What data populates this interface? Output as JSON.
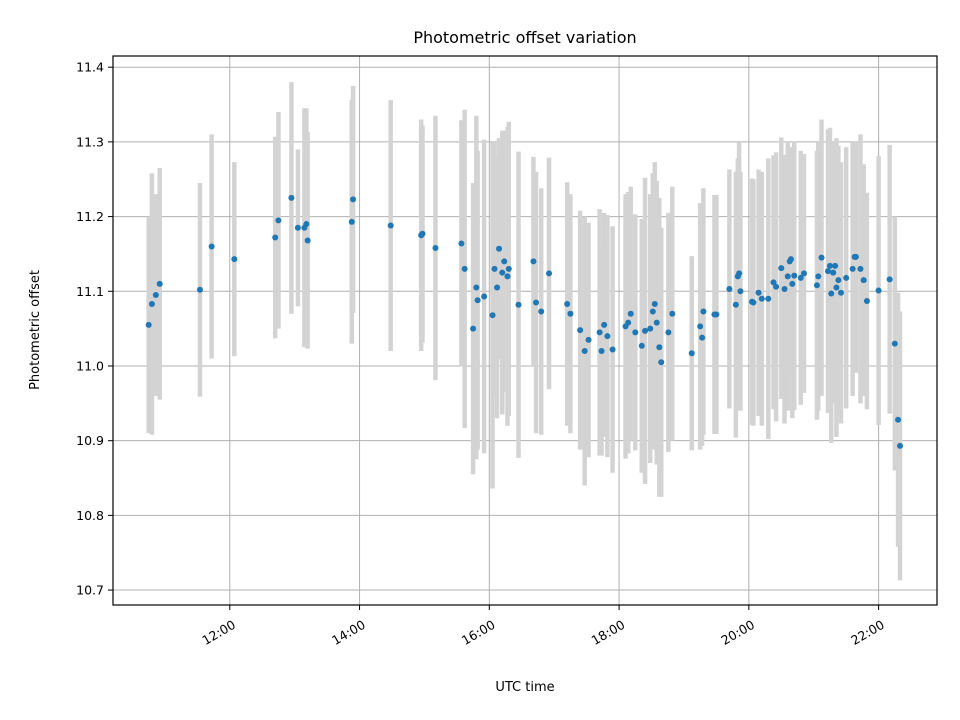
{
  "chart_data": {
    "type": "scatter",
    "title": "Photometric offset variation",
    "xlabel": "UTC time",
    "ylabel": "Photometric offset",
    "x_unit": "hours UTC",
    "xlim": [
      10.2,
      22.9
    ],
    "ylim": [
      10.68,
      11.415
    ],
    "xticks": [
      {
        "value": 12,
        "label": "12:00"
      },
      {
        "value": 14,
        "label": "14:00"
      },
      {
        "value": 16,
        "label": "16:00"
      },
      {
        "value": 18,
        "label": "18:00"
      },
      {
        "value": 20,
        "label": "20:00"
      },
      {
        "value": 22,
        "label": "22:00"
      }
    ],
    "yticks": [
      {
        "value": 10.7,
        "label": "10.7"
      },
      {
        "value": 10.8,
        "label": "10.8"
      },
      {
        "value": 10.9,
        "label": "10.9"
      },
      {
        "value": 11.0,
        "label": "11.0"
      },
      {
        "value": 11.1,
        "label": "11.1"
      },
      {
        "value": 11.2,
        "label": "11.2"
      },
      {
        "value": 11.3,
        "label": "11.3"
      },
      {
        "value": 11.4,
        "label": "11.4"
      }
    ],
    "grid": true,
    "legend": "none",
    "colors": {
      "points": "#1f77b4",
      "errorbars": "#d3d3d3",
      "grid": "#b0b0b0"
    },
    "series": [
      {
        "points": [
          [
            10.75,
            11.055,
            0.145
          ],
          [
            10.8,
            11.083,
            0.175
          ],
          [
            10.86,
            11.095,
            0.135
          ],
          [
            10.92,
            11.11,
            0.155
          ],
          [
            11.54,
            11.102,
            0.143
          ],
          [
            11.72,
            11.16,
            0.15
          ],
          [
            12.07,
            11.143,
            0.13
          ],
          [
            12.7,
            11.172,
            0.135
          ],
          [
            12.75,
            11.195,
            0.145
          ],
          [
            12.95,
            11.225,
            0.155
          ],
          [
            13.05,
            11.185,
            0.105
          ],
          [
            13.15,
            11.185,
            0.16
          ],
          [
            13.18,
            11.19,
            0.155
          ],
          [
            13.2,
            11.168,
            0.145
          ],
          [
            13.88,
            11.193,
            0.163
          ],
          [
            13.9,
            11.223,
            0.152
          ],
          [
            14.48,
            11.188,
            0.168
          ],
          [
            14.95,
            11.175,
            0.155
          ],
          [
            14.97,
            11.177,
            0.145
          ],
          [
            15.17,
            11.158,
            0.177
          ],
          [
            15.57,
            11.164,
            0.165
          ],
          [
            15.62,
            11.13,
            0.213
          ],
          [
            15.75,
            11.05,
            0.195
          ],
          [
            15.8,
            11.105,
            0.23
          ],
          [
            15.82,
            11.088,
            0.2
          ],
          [
            15.92,
            11.093,
            0.21
          ],
          [
            16.05,
            11.068,
            0.232
          ],
          [
            16.08,
            11.13,
            0.17
          ],
          [
            16.12,
            11.105,
            0.175
          ],
          [
            16.15,
            11.157,
            0.148
          ],
          [
            16.2,
            11.125,
            0.19
          ],
          [
            16.23,
            11.14,
            0.175
          ],
          [
            16.28,
            11.12,
            0.2
          ],
          [
            16.3,
            11.13,
            0.197
          ],
          [
            16.45,
            11.082,
            0.205
          ],
          [
            16.68,
            11.14,
            0.14
          ],
          [
            16.72,
            11.085,
            0.175
          ],
          [
            16.8,
            11.073,
            0.165
          ],
          [
            16.92,
            11.124,
            0.155
          ],
          [
            17.2,
            11.083,
            0.163
          ],
          [
            17.25,
            11.07,
            0.16
          ],
          [
            17.4,
            11.048,
            0.16
          ],
          [
            17.47,
            11.02,
            0.18
          ],
          [
            17.53,
            11.035,
            0.157
          ],
          [
            17.7,
            11.045,
            0.165
          ],
          [
            17.73,
            11.02,
            0.14
          ],
          [
            17.77,
            11.055,
            0.15
          ],
          [
            17.82,
            11.04,
            0.162
          ],
          [
            17.9,
            11.022,
            0.165
          ],
          [
            18.1,
            11.053,
            0.177
          ],
          [
            18.14,
            11.058,
            0.175
          ],
          [
            18.18,
            11.07,
            0.17
          ],
          [
            18.25,
            11.045,
            0.158
          ],
          [
            18.35,
            11.027,
            0.17
          ],
          [
            18.4,
            11.047,
            0.205
          ],
          [
            18.48,
            11.05,
            0.18
          ],
          [
            18.52,
            11.073,
            0.185
          ],
          [
            18.55,
            11.083,
            0.19
          ],
          [
            18.58,
            11.058,
            0.19
          ],
          [
            18.62,
            11.025,
            0.2
          ],
          [
            18.65,
            11.005,
            0.18
          ],
          [
            18.76,
            11.045,
            0.16
          ],
          [
            18.82,
            11.07,
            0.17
          ],
          [
            19.12,
            11.017,
            0.13
          ],
          [
            19.25,
            11.053,
            0.165
          ],
          [
            19.28,
            11.038,
            0.145
          ],
          [
            19.3,
            11.073,
            0.165
          ],
          [
            19.47,
            11.069,
            0.16
          ],
          [
            19.5,
            11.069,
            0.16
          ],
          [
            19.7,
            11.103,
            0.16
          ],
          [
            19.8,
            11.082,
            0.178
          ],
          [
            19.83,
            11.12,
            0.158
          ],
          [
            19.85,
            11.124,
            0.175
          ],
          [
            19.87,
            11.1,
            0.16
          ],
          [
            20.05,
            11.086,
            0.165
          ],
          [
            20.07,
            11.085,
            0.165
          ],
          [
            20.15,
            11.098,
            0.165
          ],
          [
            20.2,
            11.09,
            0.17
          ],
          [
            20.3,
            11.09,
            0.188
          ],
          [
            20.38,
            11.112,
            0.17
          ],
          [
            20.42,
            11.106,
            0.18
          ],
          [
            20.5,
            11.131,
            0.175
          ],
          [
            20.55,
            11.103,
            0.18
          ],
          [
            20.6,
            11.12,
            0.18
          ],
          [
            20.63,
            11.14,
            0.15
          ],
          [
            20.65,
            11.143,
            0.15
          ],
          [
            20.67,
            11.11,
            0.18
          ],
          [
            20.7,
            11.121,
            0.18
          ],
          [
            20.8,
            11.118,
            0.17
          ],
          [
            20.85,
            11.124,
            0.16
          ],
          [
            21.05,
            11.108,
            0.18
          ],
          [
            21.07,
            11.12,
            0.18
          ],
          [
            21.12,
            11.145,
            0.185
          ],
          [
            21.22,
            11.127,
            0.19
          ],
          [
            21.25,
            11.134,
            0.185
          ],
          [
            21.27,
            11.097,
            0.2
          ],
          [
            21.3,
            11.125,
            0.175
          ],
          [
            21.33,
            11.134,
            0.15
          ],
          [
            21.35,
            11.105,
            0.2
          ],
          [
            21.38,
            11.115,
            0.18
          ],
          [
            21.42,
            11.098,
            0.175
          ],
          [
            21.5,
            11.118,
            0.175
          ],
          [
            21.6,
            11.13,
            0.17
          ],
          [
            21.63,
            11.146,
            0.15
          ],
          [
            21.65,
            11.146,
            0.155
          ],
          [
            21.72,
            11.13,
            0.18
          ],
          [
            21.77,
            11.115,
            0.155
          ],
          [
            21.82,
            11.087,
            0.145
          ],
          [
            22.0,
            11.101,
            0.18
          ],
          [
            22.17,
            11.116,
            0.18
          ],
          [
            22.25,
            11.03,
            0.17
          ],
          [
            22.3,
            10.928,
            0.17
          ],
          [
            22.33,
            10.893,
            0.18
          ]
        ]
      }
    ]
  }
}
